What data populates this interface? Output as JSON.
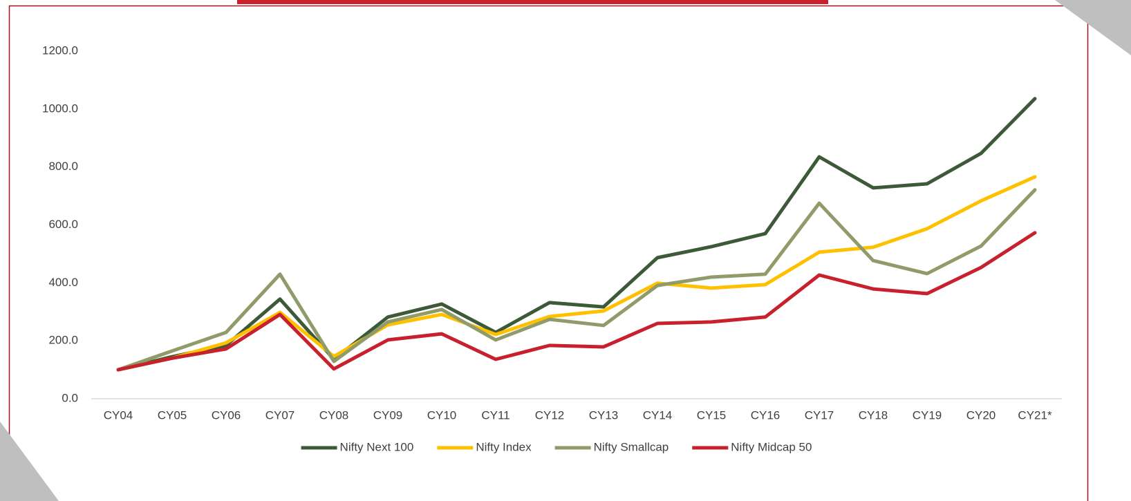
{
  "chart_data": {
    "type": "line",
    "categories": [
      "CY04",
      "CY05",
      "CY06",
      "CY07",
      "CY08",
      "CY09",
      "CY10",
      "CY11",
      "CY12",
      "CY13",
      "CY14",
      "CY15",
      "CY16",
      "CY17",
      "CY18",
      "CY19",
      "CY20",
      "CY21*"
    ],
    "series": [
      {
        "name": "Nifty Next 100",
        "color": "#3d5a38",
        "values": [
          100,
          145,
          184,
          344,
          136,
          282,
          327,
          229,
          332,
          317,
          487,
          525,
          570,
          835,
          728,
          742,
          847,
          1036
        ]
      },
      {
        "name": "Nifty Index",
        "color": "#ffc000",
        "values": [
          100,
          140,
          193,
          298,
          146,
          255,
          291,
          222,
          284,
          303,
          399,
          382,
          394,
          506,
          523,
          587,
          683,
          766
        ]
      },
      {
        "name": "Nifty Smallcap",
        "color": "#8f9c6a",
        "values": [
          100,
          165,
          229,
          430,
          129,
          265,
          308,
          203,
          274,
          253,
          391,
          420,
          430,
          675,
          477,
          432,
          527,
          721
        ]
      },
      {
        "name": "Nifty Midcap 50",
        "color": "#c8202d",
        "values": [
          100,
          140,
          172,
          291,
          103,
          203,
          224,
          136,
          184,
          179,
          260,
          265,
          282,
          427,
          379,
          363,
          453,
          573
        ]
      }
    ],
    "ylim": [
      0,
      1200
    ],
    "yticks": [
      {
        "value": 0,
        "label": "0.0"
      },
      {
        "value": 200,
        "label": "200.0"
      },
      {
        "value": 400,
        "label": "400.0"
      },
      {
        "value": 600,
        "label": "600.0"
      },
      {
        "value": 800,
        "label": "800.0"
      },
      {
        "value": 1000,
        "label": "1000.0"
      },
      {
        "value": 1200,
        "label": "1200.0"
      }
    ],
    "grid": false,
    "legend": "bottom"
  }
}
